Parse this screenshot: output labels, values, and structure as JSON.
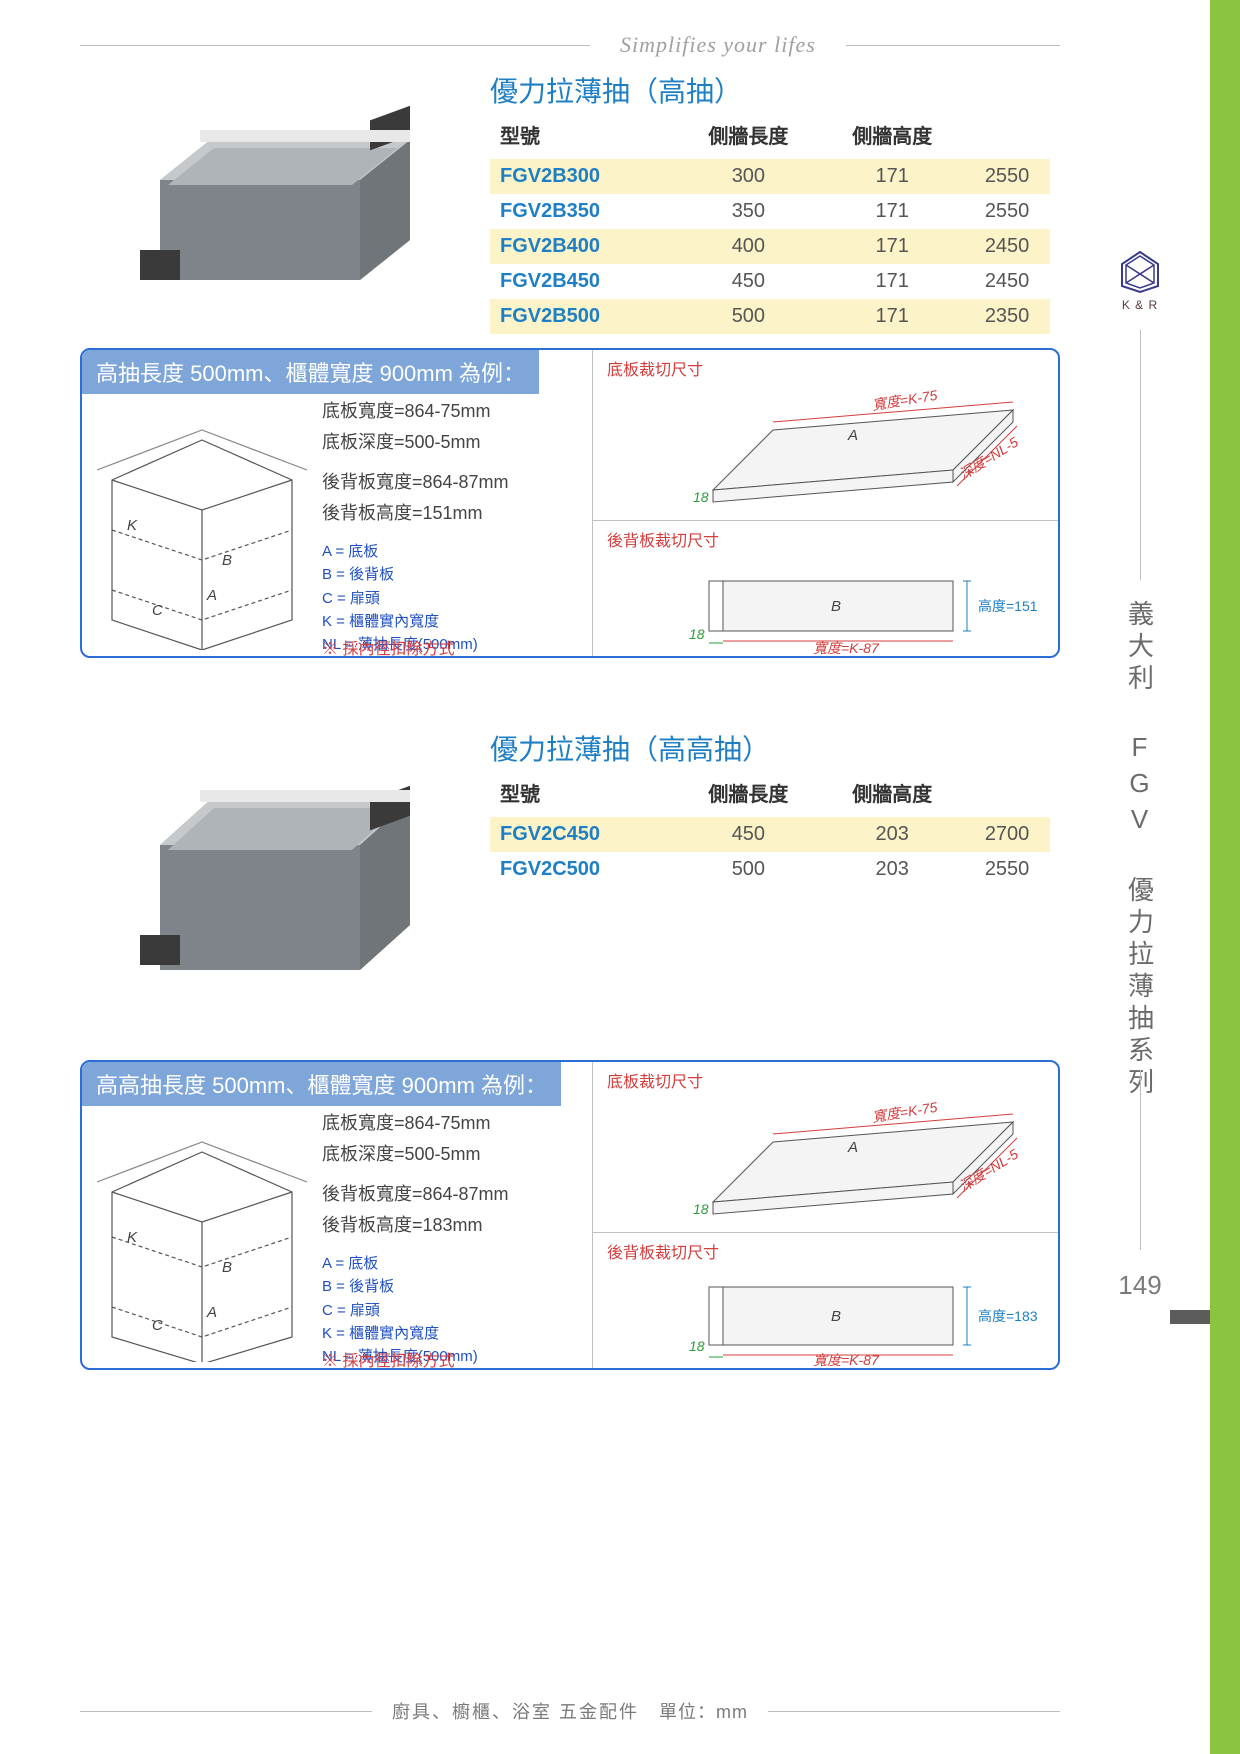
{
  "tagline": "Simplifies your lifes",
  "footer": {
    "category": "廚具、櫥櫃、浴室  五金配件",
    "unit": "單位：mm"
  },
  "side": {
    "logo_caption": "K & R",
    "vertical_text": "義大利 FGV 優力拉薄抽系列",
    "page_number": "149"
  },
  "colors": {
    "accent_blue": "#1f7fc4",
    "band_blue": "#7ea6d8",
    "highlight": "#fdf3c8",
    "border": "#2a6fd6",
    "green": "#8bc53f",
    "red": "#d43c3c",
    "dim_green": "#2e9e3a"
  },
  "section1": {
    "title": "優力拉薄抽（高抽）",
    "headers": [
      "型號",
      "側牆長度",
      "側牆高度",
      ""
    ],
    "rows": [
      {
        "hl": true,
        "cells": [
          "FGV2B300",
          "300",
          "171",
          "2550"
        ]
      },
      {
        "hl": false,
        "cells": [
          "FGV2B350",
          "350",
          "171",
          "2550"
        ]
      },
      {
        "hl": true,
        "cells": [
          "FGV2B400",
          "400",
          "171",
          "2450"
        ]
      },
      {
        "hl": false,
        "cells": [
          "FGV2B450",
          "450",
          "171",
          "2450"
        ]
      },
      {
        "hl": true,
        "cells": [
          "FGV2B500",
          "500",
          "171",
          "2350"
        ]
      }
    ],
    "example": {
      "header": "高抽長度 500mm、櫃體寬度 900mm 為例：",
      "dims": [
        "底板寬度=864-75mm",
        "底板深度=500-5mm",
        "",
        "後背板寬度=864-87mm",
        "後背板高度=151mm"
      ],
      "legend": [
        "A = 底板",
        "B = 後背板",
        "C = 扉頭",
        "K = 櫃體實內寬度",
        "NL = 薄抽長度(500mm)"
      ],
      "note": "※ 採內徑扣除方式",
      "top_title": "底板裁切尺寸",
      "bot_title": "後背板裁切尺寸",
      "top_labels": {
        "w": "寬度=K-75",
        "d": "深度=NL-5",
        "t": "18",
        "plate": "A"
      },
      "bot_labels": {
        "w": "寬度=K-87",
        "h": "高度=151",
        "t": "18",
        "plate": "B"
      }
    }
  },
  "section2": {
    "title": "優力拉薄抽（高高抽）",
    "headers": [
      "型號",
      "側牆長度",
      "側牆高度",
      ""
    ],
    "rows": [
      {
        "hl": true,
        "cells": [
          "FGV2C450",
          "450",
          "203",
          "2700"
        ]
      },
      {
        "hl": false,
        "cells": [
          "FGV2C500",
          "500",
          "203",
          "2550"
        ]
      }
    ],
    "example": {
      "header": "高高抽長度 500mm、櫃體寬度 900mm 為例：",
      "dims": [
        "底板寬度=864-75mm",
        "底板深度=500-5mm",
        "",
        "後背板寬度=864-87mm",
        "後背板高度=183mm"
      ],
      "legend": [
        "A = 底板",
        "B = 後背板",
        "C = 扉頭",
        "K = 櫃體實內寬度",
        "NL = 薄抽長度(500mm)"
      ],
      "note": "※ 採內徑扣除方式",
      "top_title": "底板裁切尺寸",
      "bot_title": "後背板裁切尺寸",
      "top_labels": {
        "w": "寬度=K-75",
        "d": "深度=NL-5",
        "t": "18",
        "plate": "A"
      },
      "bot_labels": {
        "w": "寬度=K-87",
        "h": "高度=183",
        "t": "18",
        "plate": "B"
      }
    }
  }
}
